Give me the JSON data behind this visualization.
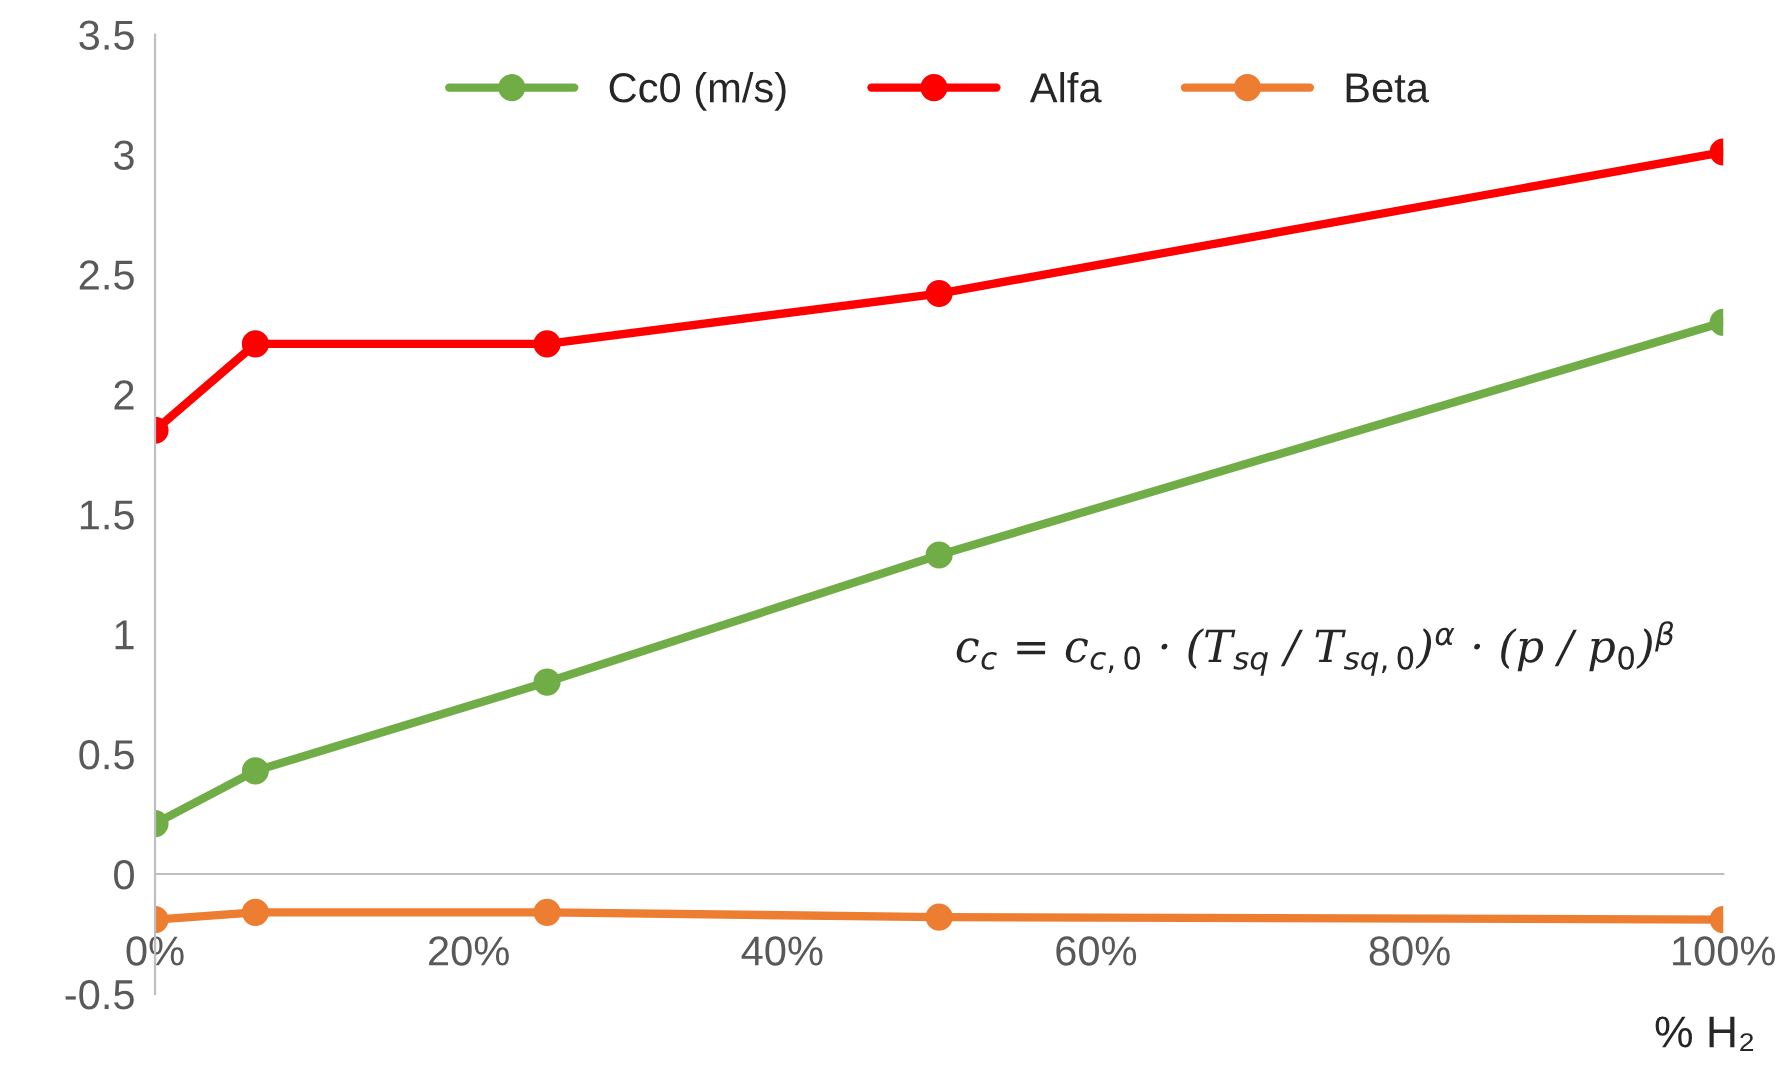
{
  "chart_data": {
    "type": "line",
    "xlabel": "% H₂",
    "x": [
      0,
      6.4,
      25,
      50,
      100
    ],
    "series": [
      {
        "name": "Cc0 (m/s)",
        "color": "#70ad47",
        "values": [
          0.21,
          0.43,
          0.8,
          1.33,
          2.3
        ]
      },
      {
        "name": "Alfa",
        "color": "#ff0000",
        "values": [
          1.85,
          2.21,
          2.21,
          2.42,
          3.01
        ]
      },
      {
        "name": "Beta",
        "color": "#ed7d31",
        "values": [
          -0.19,
          -0.16,
          -0.16,
          -0.18,
          -0.19
        ]
      }
    ],
    "xlim": [
      0,
      100
    ],
    "xticks": [
      {
        "value": 0,
        "label": "0%"
      },
      {
        "value": 20,
        "label": "20%"
      },
      {
        "value": 40,
        "label": "40%"
      },
      {
        "value": 60,
        "label": "60%"
      },
      {
        "value": 80,
        "label": "80%"
      },
      {
        "value": 100,
        "label": "100%"
      }
    ],
    "ylim": [
      -0.5,
      3.5
    ],
    "yticks": [
      -0.5,
      0,
      0.5,
      1,
      1.5,
      2,
      2.5,
      3,
      3.5
    ],
    "annotations": [
      "c$_{c}$ = c$_{c,0}$ · (T$_{sq}$ / T$_{sq,0}$)$^{α}$ · (p / p$_{0}$)$^{β}$"
    ],
    "marker": "circle",
    "line_style": "solid",
    "grid": false,
    "legend": "top"
  }
}
